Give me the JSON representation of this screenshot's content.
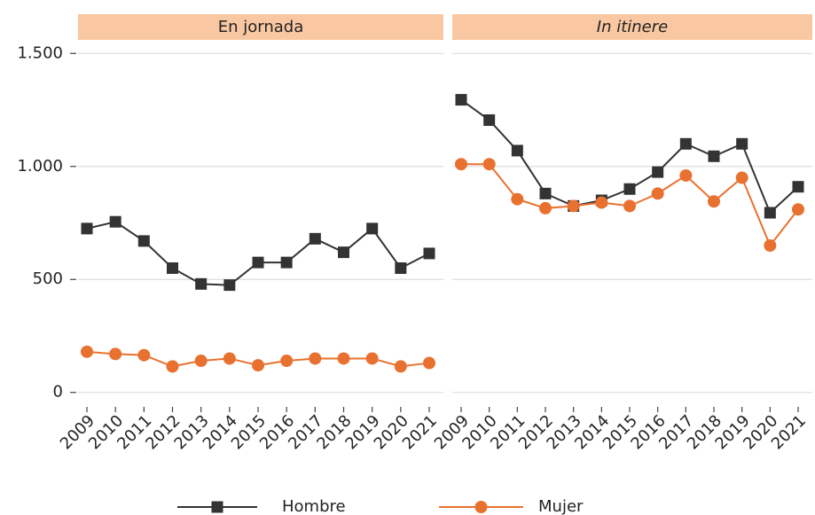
{
  "chart_data": [
    {
      "type": "line",
      "title": "En jornada",
      "title_italic": false,
      "x": [
        "2009",
        "2010",
        "2011",
        "2012",
        "2013",
        "2014",
        "2015",
        "2016",
        "2017",
        "2018",
        "2019",
        "2020",
        "2021"
      ],
      "series": [
        {
          "name": "Hombre",
          "color": "#333333",
          "marker": "square",
          "values": [
            725,
            755,
            670,
            550,
            480,
            475,
            575,
            575,
            680,
            620,
            725,
            550,
            615
          ]
        },
        {
          "name": "Mujer",
          "color": "#e8712f",
          "marker": "circle",
          "values": [
            180,
            170,
            165,
            115,
            140,
            150,
            120,
            140,
            150,
            150,
            150,
            115,
            130
          ]
        }
      ],
      "ylim": [
        -60,
        1560
      ],
      "yticks": [
        0,
        500,
        {
          "value": 1000,
          "label": "1.000"
        },
        {
          "value": 1500,
          "label": "1.500"
        }
      ],
      "grid": true,
      "strip_color": "#f9c8a2",
      "legend": "bottom"
    },
    {
      "type": "line",
      "title": "In itinere",
      "title_italic": true,
      "x": [
        "2009",
        "2010",
        "2011",
        "2012",
        "2013",
        "2014",
        "2015",
        "2016",
        "2017",
        "2018",
        "2019",
        "2020",
        "2021"
      ],
      "series": [
        {
          "name": "Hombre",
          "color": "#333333",
          "marker": "square",
          "values": [
            1295,
            1205,
            1070,
            880,
            825,
            850,
            900,
            975,
            1100,
            1045,
            1100,
            795,
            910
          ]
        },
        {
          "name": "Mujer",
          "color": "#e8712f",
          "marker": "circle",
          "values": [
            1010,
            1010,
            855,
            815,
            825,
            840,
            825,
            880,
            960,
            845,
            950,
            650,
            810
          ]
        }
      ],
      "grid": true,
      "strip_color": "#f9c8a2"
    }
  ]
}
